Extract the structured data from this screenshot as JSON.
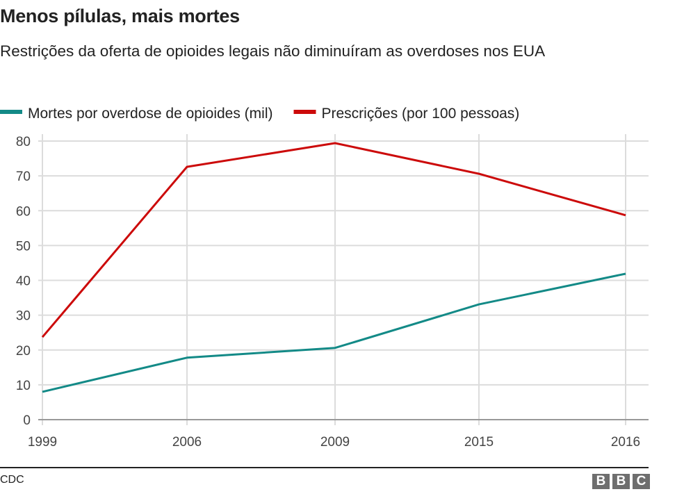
{
  "chart_data": {
    "type": "line",
    "title": "Menos pílulas, mais mortes",
    "subtitle": "Restrições da oferta de opioides legais não diminuíram as overdoses nos EUA",
    "categories": [
      "1999",
      "2006",
      "2009",
      "2015",
      "2016"
    ],
    "ylim": [
      0,
      80
    ],
    "yticks": [
      0,
      10,
      20,
      30,
      40,
      50,
      60,
      70,
      80
    ],
    "grid": true,
    "legend_placement": "top",
    "series": [
      {
        "name": "Mortes por overdose de opioides (mil)",
        "color": "#138a87",
        "values": [
          8.0,
          17.8,
          20.6,
          33.1,
          41.9
        ]
      },
      {
        "name": "Prescrições (por 100 pessoas)",
        "color": "#cc0a0a",
        "values": [
          23.7,
          72.6,
          79.4,
          70.6,
          58.7
        ]
      }
    ],
    "source": "CDC",
    "logo": "BBC"
  }
}
